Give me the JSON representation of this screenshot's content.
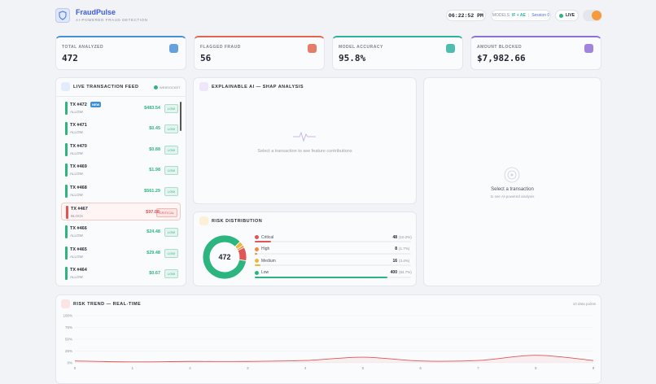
{
  "header": {
    "title": "FraudPulse",
    "subtitle": "AI-POWERED FRAUD DETECTION",
    "time": "06:22:52 PM",
    "models_label": "MODELS",
    "models_value": "IF + AE",
    "session": "Session 0",
    "status": "LIVE"
  },
  "stats": [
    {
      "label": "TOTAL ANALYZED",
      "value": 472,
      "color": "#4a90d9"
    },
    {
      "label": "FLAGGED FRAUD",
      "value": 56,
      "color": "#e0664f"
    },
    {
      "label": "MODEL ACCURACY",
      "value": "95.8%",
      "color": "#2fb0a0"
    },
    {
      "label": "AMOUNT BLOCKED",
      "value": "$7,982.66",
      "color": "#8f6fd8"
    }
  ],
  "feed": {
    "title": "LIVE TRANSACTION FEED",
    "connection": "WEBSOCKET",
    "transactions": [
      {
        "id": "TX #472",
        "badge": "NEW",
        "action": "ALLOW",
        "amount": "$483.54",
        "risk": "LOW",
        "color": "#2db57f"
      },
      {
        "id": "TX #471",
        "action": "ALLOW",
        "amount": "$0.45",
        "risk": "LOW",
        "color": "#2db57f"
      },
      {
        "id": "TX #470",
        "action": "ALLOW",
        "amount": "$0.88",
        "risk": "LOW",
        "color": "#2db57f"
      },
      {
        "id": "TX #469",
        "action": "ALLOW",
        "amount": "$1.98",
        "risk": "LOW",
        "color": "#2db57f"
      },
      {
        "id": "TX #468",
        "action": "ALLOW",
        "amount": "$561.29",
        "risk": "LOW",
        "color": "#2db57f"
      },
      {
        "id": "TX #467",
        "action": "BLOCK",
        "amount": "$97.08",
        "risk": "CRITICAL",
        "color": "#e05555"
      },
      {
        "id": "TX #466",
        "action": "ALLOW",
        "amount": "$24.48",
        "risk": "LOW",
        "color": "#2db57f"
      },
      {
        "id": "TX #465",
        "action": "ALLOW",
        "amount": "$29.48",
        "risk": "LOW",
        "color": "#2db57f"
      },
      {
        "id": "TX #464",
        "action": "ALLOW",
        "amount": "$0.67",
        "risk": "LOW",
        "color": "#2db57f"
      }
    ]
  },
  "shap": {
    "title": "EXPLAINABLE AI — SHAP ANALYSIS",
    "placeholder": "Select a transaction to see feature contributions"
  },
  "detail": {
    "title": "Select a transaction",
    "subtitle": "to see AI-powered analysis"
  },
  "risk_distribution": {
    "type": "pie",
    "title": "RISK DISTRIBUTION",
    "center_label": 472,
    "categories": [
      "Critical",
      "High",
      "Medium",
      "Low"
    ],
    "values": [
      48,
      8,
      16,
      400
    ],
    "percent_labels": [
      "(10.2%)",
      "(1.7%)",
      "(3.4%)",
      "(84.7%)"
    ],
    "colors": [
      "#e05555",
      "#f08a3c",
      "#e8b93a",
      "#2db57f"
    ]
  },
  "risk_trend": {
    "type": "line",
    "title": "RISK TREND — REAL-TIME",
    "note": "10 data points",
    "x": [
      0,
      1,
      2,
      3,
      4,
      5,
      6,
      7,
      8,
      9
    ],
    "values": [
      4,
      2,
      3,
      3,
      5,
      12,
      4,
      5,
      16,
      5
    ],
    "xlim": [
      0,
      9
    ],
    "ylim": [
      0,
      100
    ],
    "yticks": [
      {
        "value": 0,
        "label": "0%"
      },
      {
        "value": 25,
        "label": "25%"
      },
      {
        "value": 50,
        "label": "50%"
      },
      {
        "value": 75,
        "label": "75%"
      },
      {
        "value": 100,
        "label": "100%"
      }
    ],
    "color": "#e05555"
  }
}
